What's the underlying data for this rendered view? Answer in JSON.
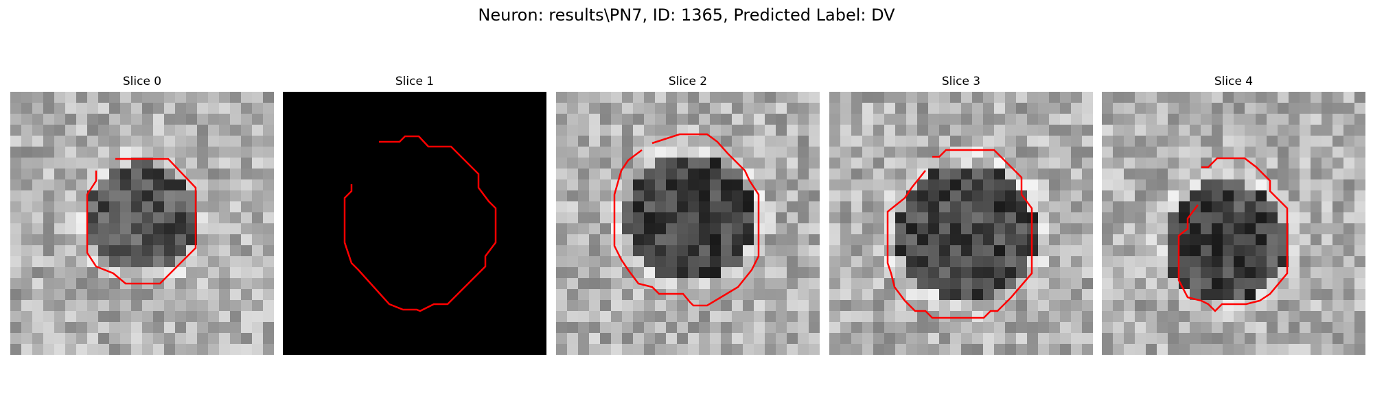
{
  "figure": {
    "title": "Neuron: results\\PN7, ID: 1365, Predicted Label: DV"
  },
  "slices": [
    {
      "title": "Slice 0",
      "image": "grayscale-em-patch",
      "contour": "red-cell-outline"
    },
    {
      "title": "Slice 1",
      "image": "black-patch",
      "contour": "red-cell-outline"
    },
    {
      "title": "Slice 2",
      "image": "grayscale-em-patch",
      "contour": "red-cell-outline"
    },
    {
      "title": "Slice 3",
      "image": "grayscale-em-patch",
      "contour": "red-cell-outline"
    },
    {
      "title": "Slice 4",
      "image": "grayscale-em-patch",
      "contour": "red-cell-outline"
    }
  ],
  "colors": {
    "contour": "#ff0000",
    "background": "#ffffff"
  }
}
